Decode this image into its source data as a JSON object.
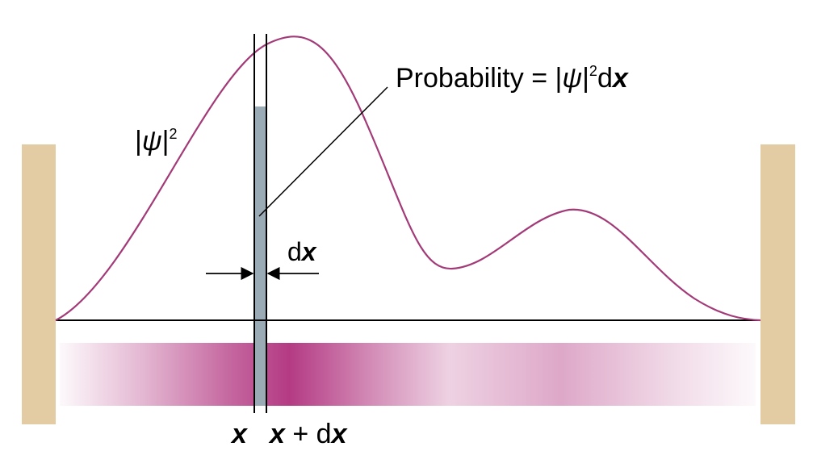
{
  "labels": {
    "psi_symbol": "ψ",
    "psi_bar_left": "|",
    "psi_bar_right": "|",
    "psi_exp": "2",
    "probability_prefix": "Probability = |",
    "probability_psi": "ψ",
    "probability_bar": "|",
    "probability_exp": "2",
    "probability_d": "d",
    "probability_x": "x",
    "dx_d": "d",
    "dx_x": "x",
    "x_label": "x",
    "x_plus_dx_x": "x",
    "x_plus_dx_plus": " + d",
    "x_plus_dx_x2": "x"
  },
  "colors": {
    "wall": "#e3cba4",
    "curve": "#a33a78",
    "strip": "#9aabb6",
    "density": "#b0307d",
    "line": "#000000"
  }
}
